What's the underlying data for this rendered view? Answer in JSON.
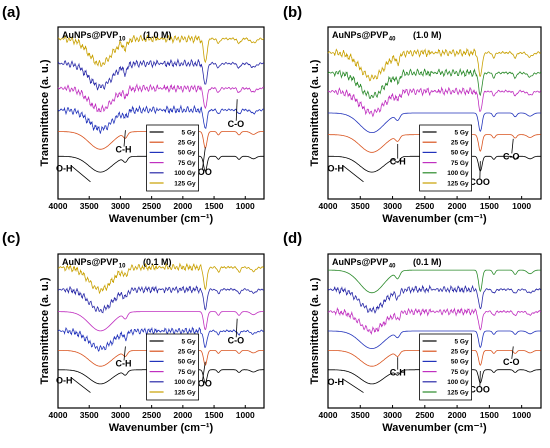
{
  "figure": {
    "background": "#ffffff"
  },
  "chart_data": [
    {
      "type": "line",
      "panel": "(a)",
      "title": {
        "main": "AuNPs@PVP",
        "sub": "10",
        "concentration": "(1.0 M)"
      },
      "xlabel": "Wavenumber (cm⁻¹)",
      "ylabel": "Transmittance (a. u.)",
      "xlim": [
        4000,
        700
      ],
      "x_reversed": true,
      "xticks": [
        4000,
        3500,
        3000,
        2500,
        2000,
        1500,
        1000
      ],
      "y_ticks_shown": false,
      "legend": {
        "position": "bottom-right"
      },
      "series": [
        {
          "name": "5 Gy",
          "color": "#000000",
          "offset": 0.0
        },
        {
          "name": "25 Gy",
          "color": "#d9531e",
          "offset": 0.14
        },
        {
          "name": "50 Gy",
          "color": "#2233bb",
          "offset": 0.26
        },
        {
          "name": "75 Gy",
          "color": "#c030c0",
          "offset": 0.38
        },
        {
          "name": "100 Gy",
          "color": "#2a2aa8",
          "offset": 0.52
        },
        {
          "name": "125 Gy",
          "color": "#c8a000",
          "offset": 0.66
        }
      ],
      "noisy_series": [
        2,
        3,
        4,
        5
      ],
      "annotations": [
        {
          "text": "O-H",
          "x": 3900,
          "y": 0.16,
          "arrow_to": [
            3480,
            0.1
          ]
        },
        {
          "text": "C-H",
          "x": 2950,
          "y": 0.27,
          "arrow_to": [
            2920,
            0.4
          ]
        },
        {
          "text": "COO",
          "x": 1700,
          "y": 0.14,
          "arrow_to": [
            1640,
            0.3
          ]
        },
        {
          "text": "C-O",
          "x": 1150,
          "y": 0.42,
          "arrow_to": [
            1130,
            0.58
          ]
        }
      ]
    },
    {
      "type": "line",
      "panel": "(b)",
      "title": {
        "main": "AuNPs@PVP",
        "sub": "40",
        "concentration": "(1.0 M)"
      },
      "xlabel": "Wavenumber (cm⁻¹)",
      "ylabel": "Transmittance (a. u.)",
      "xlim": [
        4000,
        700
      ],
      "x_reversed": true,
      "xticks": [
        4000,
        3500,
        3000,
        2500,
        2000,
        1500,
        1000
      ],
      "y_ticks_shown": false,
      "legend": {
        "position": "bottom-right"
      },
      "series": [
        {
          "name": "5 Gy",
          "color": "#000000",
          "offset": 0.0
        },
        {
          "name": "25 Gy",
          "color": "#d9531e",
          "offset": 0.12
        },
        {
          "name": "50 Gy",
          "color": "#2233bb",
          "offset": 0.24
        },
        {
          "name": "75 Gy",
          "color": "#c030c0",
          "offset": 0.36
        },
        {
          "name": "100 Gy",
          "color": "#2a8a2a",
          "offset": 0.46
        },
        {
          "name": "125 Gy",
          "color": "#c8a000",
          "offset": 0.57
        }
      ],
      "noisy_series": [
        3,
        4,
        5
      ],
      "annotations": [
        {
          "text": "O-H",
          "x": 3880,
          "y": 0.16,
          "arrow_to": [
            3450,
            0.1
          ]
        },
        {
          "text": "C-H",
          "x": 2920,
          "y": 0.2,
          "arrow_to": [
            2920,
            0.32
          ]
        },
        {
          "text": "COO",
          "x": 1650,
          "y": 0.08,
          "arrow_to": [
            1640,
            0.22
          ]
        },
        {
          "text": "C-O",
          "x": 1160,
          "y": 0.23,
          "arrow_to": [
            1130,
            0.35
          ]
        }
      ]
    },
    {
      "type": "line",
      "panel": "(c)",
      "title": {
        "main": "AuNPs@PVP",
        "sub": "10",
        "concentration": "(0.1 M)"
      },
      "xlabel": "Wavenumber (cm⁻¹)",
      "ylabel": "Transmittance (a. u.)",
      "xlim": [
        4000,
        700
      ],
      "x_reversed": true,
      "xticks": [
        4000,
        3500,
        3000,
        2500,
        2000,
        1500,
        1000
      ],
      "y_ticks_shown": false,
      "legend": {
        "position": "bottom-right"
      },
      "series": [
        {
          "name": "5 Gy",
          "color": "#000000",
          "offset": 0.0
        },
        {
          "name": "25 Gy",
          "color": "#d9531e",
          "offset": 0.12
        },
        {
          "name": "50 Gy",
          "color": "#2233bb",
          "offset": 0.24
        },
        {
          "name": "75 Gy",
          "color": "#c030c0",
          "offset": 0.36
        },
        {
          "name": "100 Gy",
          "color": "#2a2aa8",
          "offset": 0.5
        },
        {
          "name": "125 Gy",
          "color": "#c8a000",
          "offset": 0.64
        }
      ],
      "noisy_series": [
        2,
        4,
        5
      ],
      "annotations": [
        {
          "text": "O-H",
          "x": 3900,
          "y": 0.16,
          "arrow_to": [
            3480,
            0.1
          ]
        },
        {
          "text": "C-H",
          "x": 2950,
          "y": 0.27,
          "arrow_to": [
            2920,
            0.4
          ]
        },
        {
          "text": "COO",
          "x": 1700,
          "y": 0.14,
          "arrow_to": [
            1640,
            0.3
          ]
        },
        {
          "text": "C-O",
          "x": 1150,
          "y": 0.42,
          "arrow_to": [
            1130,
            0.58
          ]
        }
      ]
    },
    {
      "type": "line",
      "panel": "(d)",
      "title": {
        "main": "AuNPs@PVP",
        "sub": "40",
        "concentration": "(0.1 M)"
      },
      "xlabel": "Wavenumber (cm⁻¹)",
      "ylabel": "Transmittance (a. u.)",
      "xlim": [
        4000,
        700
      ],
      "x_reversed": true,
      "xticks": [
        4000,
        3500,
        3000,
        2500,
        2000,
        1500,
        1000
      ],
      "y_ticks_shown": false,
      "legend": {
        "position": "bottom-right"
      },
      "series": [
        {
          "name": "5 Gy",
          "color": "#000000",
          "offset": 0.0
        },
        {
          "name": "25 Gy",
          "color": "#d9531e",
          "offset": 0.12
        },
        {
          "name": "50 Gy",
          "color": "#2233bb",
          "offset": 0.24
        },
        {
          "name": "75 Gy",
          "color": "#c030c0",
          "offset": 0.36
        },
        {
          "name": "100 Gy",
          "color": "#2a2aa8",
          "offset": 0.5
        },
        {
          "name": "125 Gy",
          "color": "#2a8a2a",
          "offset": 0.62
        }
      ],
      "noisy_series": [
        3,
        4
      ],
      "annotations": [
        {
          "text": "O-H",
          "x": 3880,
          "y": 0.15,
          "arrow_to": [
            3450,
            0.1
          ]
        },
        {
          "text": "C-H",
          "x": 2920,
          "y": 0.21,
          "arrow_to": [
            2920,
            0.33
          ]
        },
        {
          "text": "COO",
          "x": 1650,
          "y": 0.1,
          "arrow_to": [
            1640,
            0.24
          ]
        },
        {
          "text": "C-O",
          "x": 1160,
          "y": 0.28,
          "arrow_to": [
            1130,
            0.4
          ]
        }
      ]
    }
  ]
}
